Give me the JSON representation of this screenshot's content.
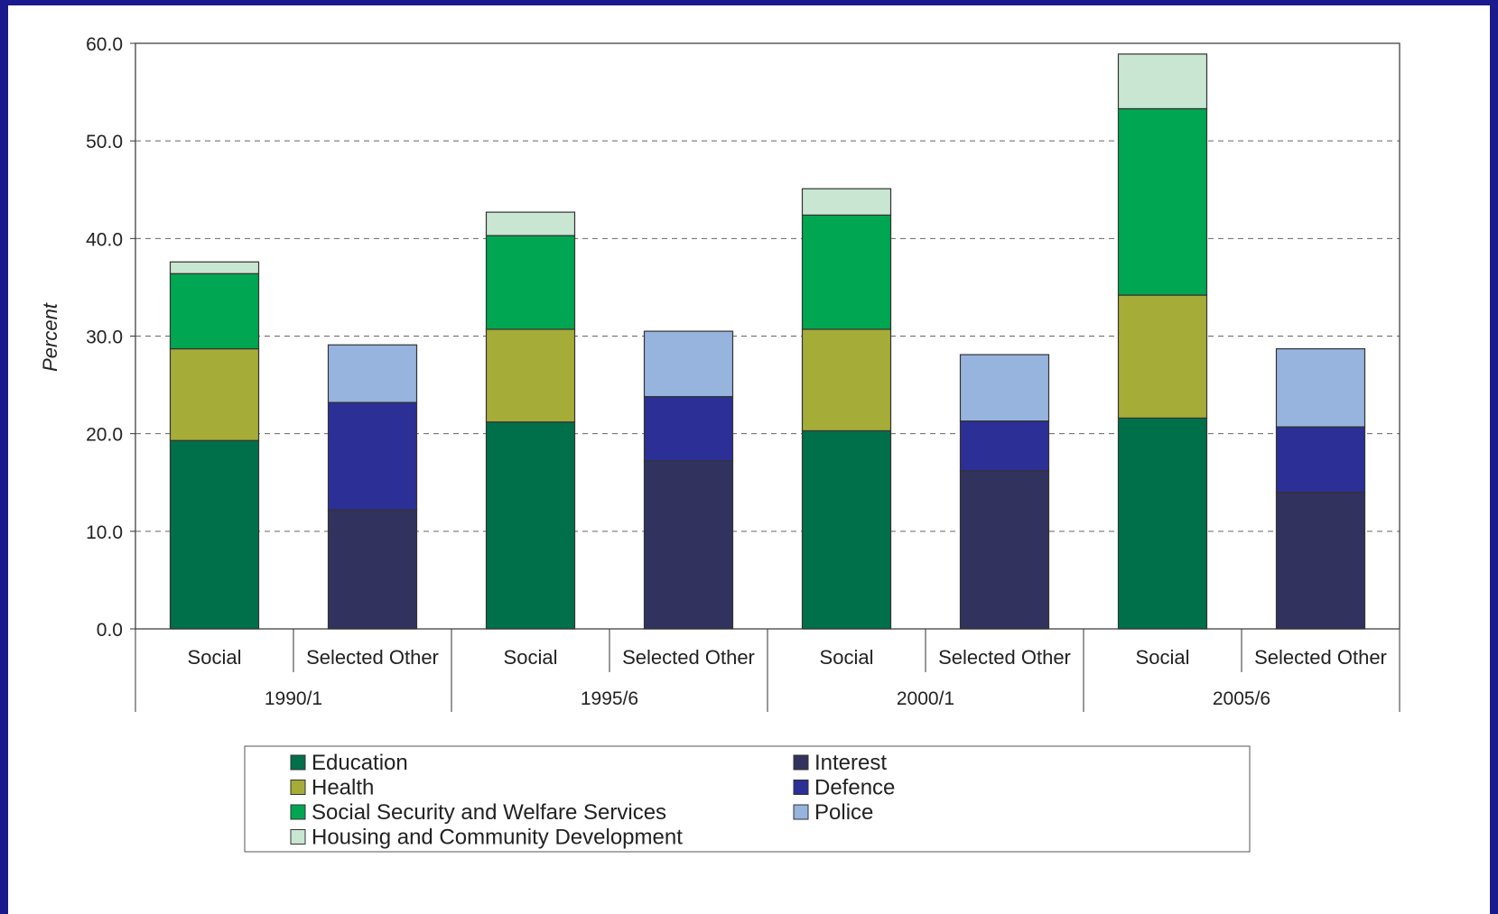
{
  "chart_data": {
    "type": "bar",
    "stacked": true,
    "title": "",
    "ylabel": "Percent",
    "ylim": [
      0,
      60
    ],
    "yticks": [
      "0.0",
      "10.0",
      "20.0",
      "30.0",
      "40.0",
      "50.0",
      "60.0"
    ],
    "grid": "horizontal dashed",
    "legend_position": "bottom",
    "groups": [
      "1990/1",
      "1995/6",
      "2000/1",
      "2005/6"
    ],
    "subcategories": [
      "Social",
      "Selected Other"
    ],
    "series": [
      {
        "name": "Education",
        "color": "#00704a",
        "values": [
          19.3,
          0,
          21.2,
          0,
          20.3,
          0,
          21.6,
          0
        ]
      },
      {
        "name": "Health",
        "color": "#a6ac38",
        "values": [
          9.4,
          0,
          9.5,
          0,
          10.4,
          0,
          12.6,
          0
        ]
      },
      {
        "name": "Social Security and Welfare Services",
        "color": "#00a651",
        "values": [
          7.7,
          0,
          9.6,
          0,
          11.7,
          0,
          19.1,
          0
        ]
      },
      {
        "name": "Housing and Community Development",
        "color": "#c8e6d2",
        "values": [
          1.2,
          0,
          2.4,
          0,
          2.7,
          0,
          5.6,
          0
        ]
      },
      {
        "name": "Interest",
        "color": "#32325e",
        "values": [
          0,
          12.2,
          0,
          17.2,
          0,
          16.2,
          0,
          14.0
        ]
      },
      {
        "name": "Defence",
        "color": "#2b2f96",
        "values": [
          0,
          11.0,
          0,
          6.6,
          0,
          5.1,
          0,
          6.7
        ]
      },
      {
        "name": "Police",
        "color": "#96b4de",
        "values": [
          0,
          5.9,
          0,
          6.7,
          0,
          6.8,
          0,
          8.0
        ]
      }
    ]
  }
}
